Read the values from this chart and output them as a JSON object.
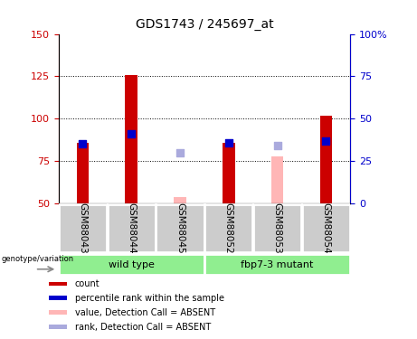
{
  "title": "GDS1743 / 245697_at",
  "samples": [
    "GSM88043",
    "GSM88044",
    "GSM88045",
    "GSM88052",
    "GSM88053",
    "GSM88054"
  ],
  "count_values": [
    86,
    126,
    null,
    86,
    null,
    102
  ],
  "count_absent": [
    null,
    null,
    54,
    null,
    78,
    null
  ],
  "rank_values": [
    85,
    91,
    null,
    86,
    null,
    87
  ],
  "rank_absent": [
    null,
    null,
    80,
    null,
    84,
    null
  ],
  "ylim_left": [
    50,
    150
  ],
  "ylim_right": [
    0,
    100
  ],
  "yticks_left": [
    50,
    75,
    100,
    125,
    150
  ],
  "yticks_right": [
    0,
    25,
    50,
    75,
    100
  ],
  "groups": [
    {
      "label": "wild type",
      "indices": [
        0,
        1,
        2
      ]
    },
    {
      "label": "fbp7-3 mutant",
      "indices": [
        3,
        4,
        5
      ]
    }
  ],
  "bar_color_present": "#cc0000",
  "bar_color_absent": "#ffb6b6",
  "rank_color_present": "#0000cc",
  "rank_color_absent": "#aaaadd",
  "bar_width": 0.25,
  "rank_marker_size": 30,
  "left_axis_color": "#cc0000",
  "right_axis_color": "#0000cc",
  "xlabel_area_color": "#cccccc",
  "grid_color": "black",
  "genotype_label": "genotype/variation"
}
